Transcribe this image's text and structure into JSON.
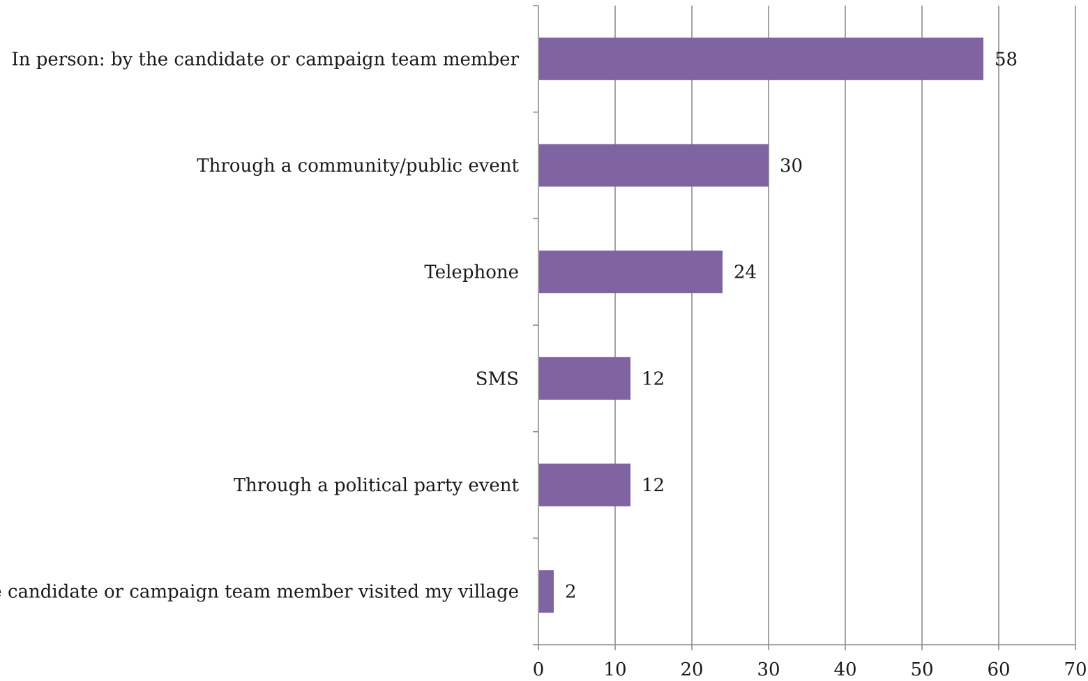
{
  "chart_data": {
    "type": "bar",
    "orientation": "horizontal",
    "categories": [
      "In person: by the candidate or campaign team member",
      "Through a community/public event",
      "Telephone",
      "SMS",
      "Through a political party event",
      "The candidate or campaign team member visited my village"
    ],
    "values": [
      58,
      30,
      24,
      12,
      12,
      2
    ],
    "data_labels": [
      "58",
      "30",
      "24",
      "12",
      "12",
      "2"
    ],
    "bar_color": "#8064a2",
    "xlim": [
      0,
      70
    ],
    "x_ticks": [
      0,
      10,
      20,
      30,
      40,
      50,
      60,
      70
    ],
    "x_tick_labels": [
      "0",
      "10",
      "20",
      "30",
      "40",
      "50",
      "60",
      "70"
    ],
    "grid": "vertical major gridlines",
    "legend": "none",
    "title": "",
    "xlabel": "",
    "ylabel": ""
  }
}
